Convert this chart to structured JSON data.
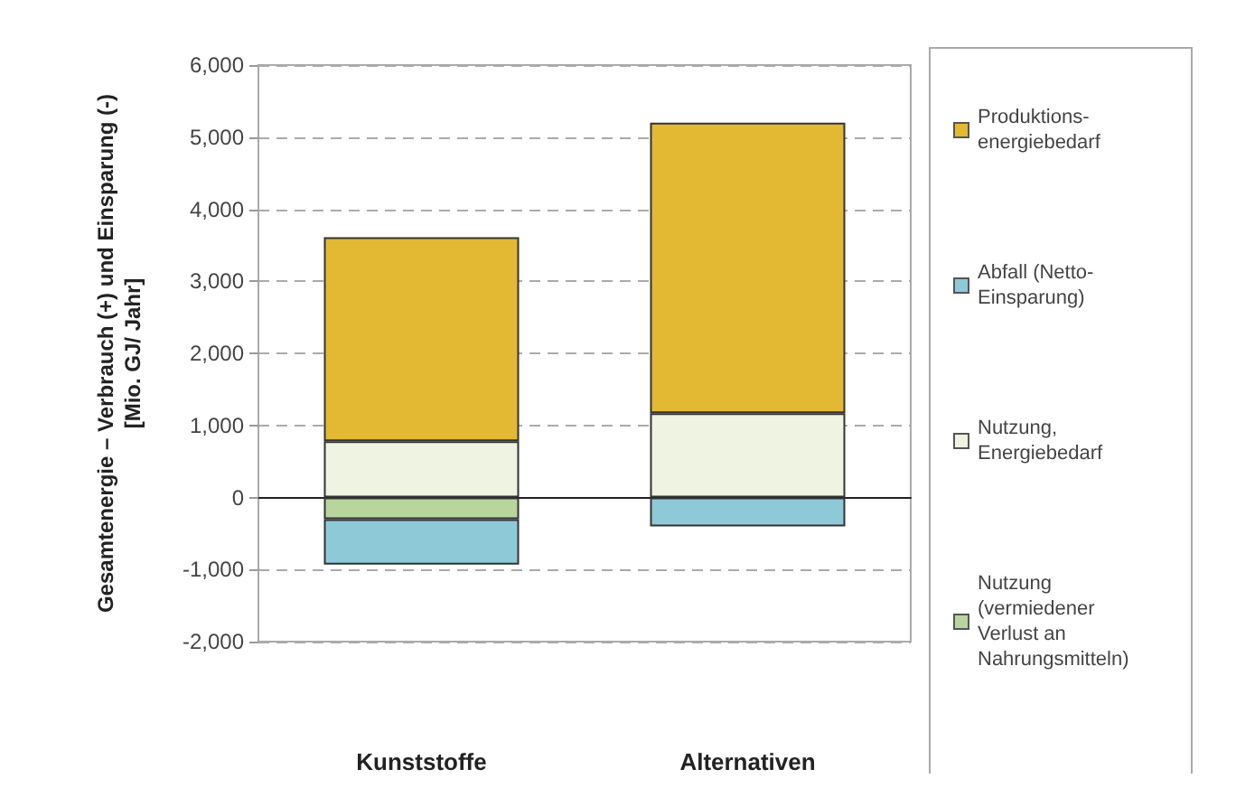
{
  "chart_data": {
    "type": "bar",
    "stacked": true,
    "ylabel": "Gesamtenergie – Verbrauch (+) und Einsparung (-) [Mio. GJ/ Jahr]",
    "categories": [
      "Kunststoffe",
      "Alternativen"
    ],
    "series": [
      {
        "name": "Nutzung, Energiebedarf",
        "color": "#eef3e2",
        "values": [
          780,
          1170
        ]
      },
      {
        "name": "Nutzung (vermiedener Verlust an Nahrungsmitteln)",
        "color": "#b9d59e",
        "values": [
          -300,
          null
        ]
      },
      {
        "name": "Produktions-energiebedarf",
        "color": "#e3b833",
        "values": [
          2830,
          4030
        ]
      },
      {
        "name": "Abfall (Netto-Einsparung)",
        "color": "#8ec9d8",
        "values": [
          -630,
          -400
        ]
      }
    ],
    "ylim": [
      -2000,
      6000
    ],
    "yticks": [
      {
        "value": -2000,
        "label": "-2,000"
      },
      {
        "value": -1000,
        "label": "-1,000"
      },
      0,
      {
        "value": 1000,
        "label": "1,000"
      },
      {
        "value": 2000,
        "label": "2,000"
      },
      {
        "value": 3000,
        "label": "3,000"
      },
      {
        "value": 4000,
        "label": "4,000"
      },
      {
        "value": 5000,
        "label": "5,000"
      },
      {
        "value": 6000,
        "label": "6,000"
      }
    ],
    "grid": "y",
    "legend": "right"
  }
}
